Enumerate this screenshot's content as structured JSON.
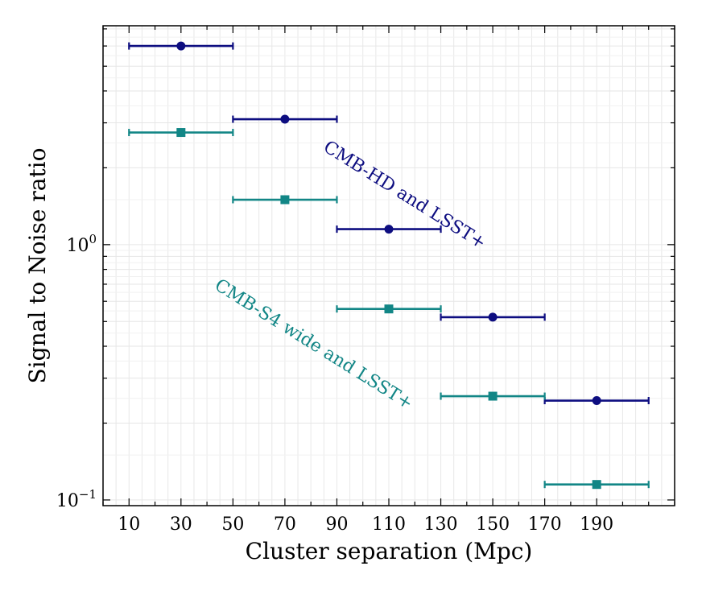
{
  "chart_data": {
    "type": "scatter",
    "title": "",
    "xlabel": "Cluster separation (Mpc)",
    "ylabel": "Signal to Noise ratio",
    "x_scale": "linear",
    "y_scale": "log",
    "xlim": [
      0,
      220
    ],
    "ylim": [
      0.095,
      7.2
    ],
    "x_ticks": [
      10,
      30,
      50,
      70,
      90,
      110,
      130,
      150,
      170,
      190
    ],
    "y_tick_labels": [
      {
        "value": 1.0,
        "text": "10^0"
      },
      {
        "value": 0.1,
        "text": "10^-1"
      }
    ],
    "grid": true,
    "series": [
      {
        "name": "CMB-HD and LSST+",
        "color": "#0d0d80",
        "marker": "circle",
        "x": [
          30,
          70,
          110,
          150,
          190
        ],
        "y": [
          6.0,
          3.1,
          1.15,
          0.52,
          0.245
        ],
        "x_err": [
          20,
          20,
          20,
          20,
          20
        ]
      },
      {
        "name": "CMB-S4 wide and LSST+",
        "color": "#128686",
        "marker": "square",
        "x": [
          30,
          70,
          110,
          150,
          190
        ],
        "y": [
          2.75,
          1.5,
          0.56,
          0.255,
          0.115
        ],
        "x_err": [
          20,
          20,
          20,
          20,
          20
        ]
      }
    ],
    "annotations": [
      {
        "text": "CMB-HD and LSST+",
        "color": "#0d0d80",
        "x": 115,
        "y": 1.5,
        "rotation": 32
      },
      {
        "text": "CMB-S4 wide and LSST+",
        "color": "#128686",
        "x": 80,
        "y": 0.39,
        "rotation": 32
      }
    ]
  }
}
